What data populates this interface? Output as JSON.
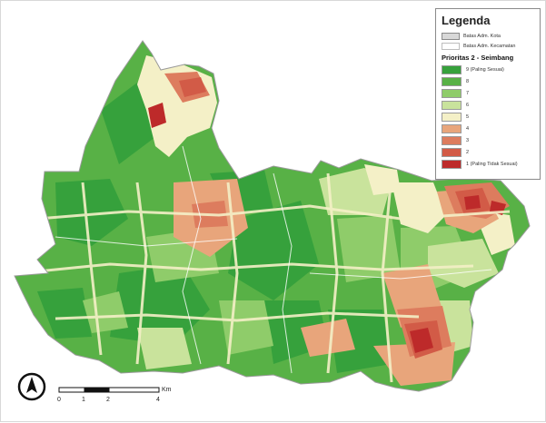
{
  "legend": {
    "title": "Legenda",
    "boundaries": [
      {
        "label": "Batas Adm. Kota",
        "color": "#d8d8d8"
      },
      {
        "label": "Batas Adm. Kecamatan",
        "color": "#ffffff"
      }
    ],
    "subtitle": "Prioritas 2 - Seimbang",
    "classes": [
      {
        "label": "9 (Paling Sesuai)",
        "color": "#36a13c"
      },
      {
        "label": "8",
        "color": "#58b146"
      },
      {
        "label": "7",
        "color": "#8fcc6a"
      },
      {
        "label": "6",
        "color": "#c9e39c"
      },
      {
        "label": "5",
        "color": "#f4f0c7"
      },
      {
        "label": "4",
        "color": "#e8a57b"
      },
      {
        "label": "3",
        "color": "#dd7c5e"
      },
      {
        "label": "2",
        "color": "#d25b47"
      },
      {
        "label": "1 (Paling Tidak Sesuai)",
        "color": "#bd2a2a"
      }
    ]
  },
  "scale_bar": {
    "unit": "Km",
    "ticks": [
      "0",
      "1",
      "2",
      "4"
    ]
  },
  "north_arrow": {
    "symbol": "north-arrow"
  }
}
